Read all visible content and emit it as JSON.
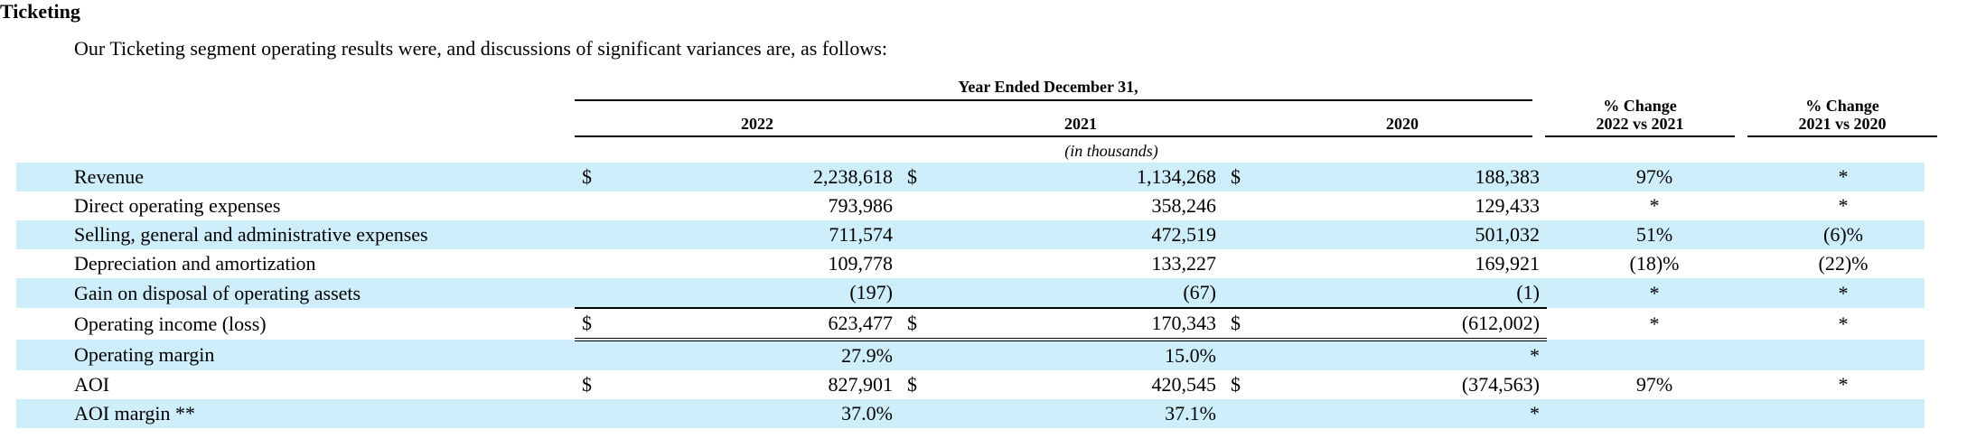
{
  "section_title": "Ticketing",
  "intro": "Our Ticketing segment operating results were, and discussions of significant variances are, as follows:",
  "header": {
    "group_label": "Year Ended December 31,",
    "years": [
      "2022",
      "2021",
      "2020"
    ],
    "pct_change_1": [
      "% Change",
      "2022 vs 2021"
    ],
    "pct_change_2": [
      "% Change",
      "2021 vs 2020"
    ],
    "units": "(in thousands)"
  },
  "rows": [
    {
      "label": "Revenue",
      "d2022": "$",
      "v2022": "2,238,618",
      "d2021": "$",
      "v2021": "1,134,268",
      "d2020": "$",
      "v2020": "188,383",
      "c1": "97%",
      "c2": "*"
    },
    {
      "label": "Direct operating expenses",
      "d2022": "",
      "v2022": "793,986",
      "d2021": "",
      "v2021": "358,246",
      "d2020": "",
      "v2020": "129,433",
      "c1": "*",
      "c2": "*"
    },
    {
      "label": "Selling, general and administrative expenses",
      "d2022": "",
      "v2022": "711,574",
      "d2021": "",
      "v2021": "472,519",
      "d2020": "",
      "v2020": "501,032",
      "c1": "51%",
      "c2": "(6)%"
    },
    {
      "label": "Depreciation and amortization",
      "d2022": "",
      "v2022": "109,778",
      "d2021": "",
      "v2021": "133,227",
      "d2020": "",
      "v2020": "169,921",
      "c1": "(18)%",
      "c2": "(22)%"
    },
    {
      "label": "Gain on disposal of operating assets",
      "d2022": "",
      "v2022": "(197)",
      "d2021": "",
      "v2021": "(67)",
      "d2020": "",
      "v2020": "(1)",
      "c1": "*",
      "c2": "*"
    },
    {
      "label": "Operating income (loss)",
      "d2022": "$",
      "v2022": "623,477",
      "d2021": "$",
      "v2021": "170,343",
      "d2020": "$",
      "v2020": "(612,002)",
      "c1": "*",
      "c2": "*"
    },
    {
      "label": "Operating margin",
      "d2022": "",
      "v2022": "27.9%",
      "d2021": "",
      "v2021": "15.0%",
      "d2020": "",
      "v2020": "*",
      "c1": "",
      "c2": ""
    },
    {
      "label": "AOI",
      "d2022": "$",
      "v2022": "827,901",
      "d2021": "$",
      "v2021": "420,545",
      "d2020": "$",
      "v2020": "(374,563)",
      "c1": "97%",
      "c2": "*"
    },
    {
      "label": "AOI margin **",
      "d2022": "",
      "v2022": "37.0%",
      "d2021": "",
      "v2021": "37.1%",
      "d2020": "",
      "v2020": "*",
      "c1": "",
      "c2": ""
    }
  ]
}
